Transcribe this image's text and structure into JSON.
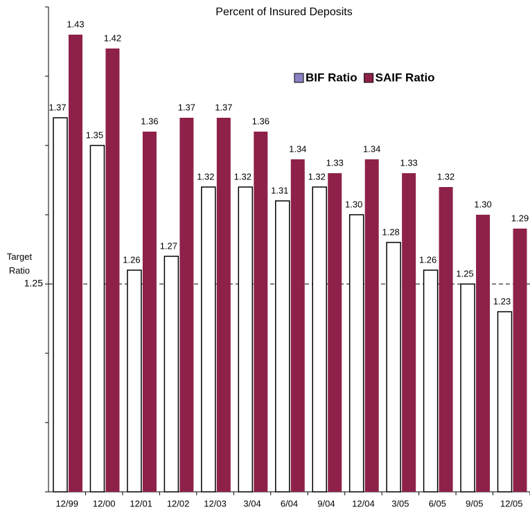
{
  "chart_data": {
    "type": "bar",
    "title": "Percent of Insured Deposits",
    "categories": [
      "12/99",
      "12/00",
      "12/01",
      "12/02",
      "12/03",
      "3/04",
      "6/04",
      "9/04",
      "12/04",
      "3/05",
      "6/05",
      "9/05",
      "12/05"
    ],
    "series": [
      {
        "name": "BIF Ratio",
        "color": "#ffffff",
        "legend_color": "#8a82c4",
        "values": [
          1.37,
          1.35,
          1.26,
          1.27,
          1.32,
          1.32,
          1.31,
          1.32,
          1.3,
          1.28,
          1.26,
          1.25,
          1.23
        ],
        "value_labels": [
          "1.37",
          "1.35",
          "1.26",
          "1.27",
          "1.32",
          "1.32",
          "1.31",
          "1.32",
          "1.30",
          "1.28",
          "1.26",
          "1.25",
          "1.23"
        ]
      },
      {
        "name": "SAIF Ratio",
        "color": "#8e2149",
        "values": [
          1.43,
          1.42,
          1.36,
          1.37,
          1.37,
          1.36,
          1.34,
          1.33,
          1.34,
          1.33,
          1.32,
          1.3,
          1.29
        ],
        "value_labels": [
          "1.43",
          "1.42",
          "1.36",
          "1.37",
          "1.37",
          "1.36",
          "1.34",
          "1.33",
          "1.34",
          "1.33",
          "1.32",
          "1.30",
          "1.29"
        ]
      }
    ],
    "ylim": [
      1.1,
      1.45
    ],
    "yticks": [
      {
        "value": 1.1,
        "label": null
      },
      {
        "value": 1.15,
        "label": null
      },
      {
        "value": 1.2,
        "label": null
      },
      1.25,
      {
        "value": 1.3,
        "label": null
      },
      {
        "value": 1.35,
        "label": null
      },
      {
        "value": 1.4,
        "label": null
      },
      {
        "value": 1.45,
        "label": null
      }
    ],
    "reference_line": {
      "value": 1.25,
      "label": "Target Ratio"
    },
    "legend": "upper right",
    "grid": false
  }
}
